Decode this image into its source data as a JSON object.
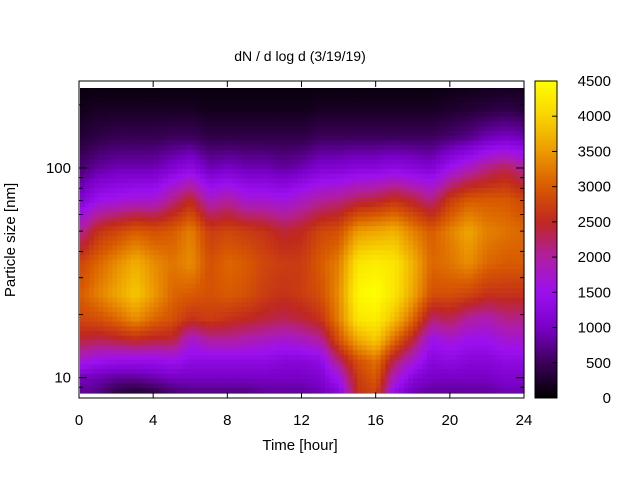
{
  "chart_data": {
    "type": "heatmap",
    "title": "dN / d log d (3/19/19)",
    "xlabel": "Time [hour]",
    "ylabel": "Particle size [nm]",
    "x_range": [
      0,
      24
    ],
    "x_ticks": [
      0,
      4,
      8,
      12,
      16,
      20,
      24
    ],
    "y_scale": "log",
    "y_range": [
      8,
      260
    ],
    "y_ticks": [
      10,
      100
    ],
    "colorbar": {
      "range": [
        0,
        4500
      ],
      "ticks": [
        0,
        500,
        1000,
        1500,
        2000,
        2500,
        3000,
        3500,
        4000,
        4500
      ],
      "palette": [
        "#000000",
        "#3c005a",
        "#7a00c8",
        "#9c10f0",
        "#b01ea0",
        "#c0281e",
        "#d85a00",
        "#ec9a00",
        "#f8d400",
        "#ffff00"
      ]
    },
    "hours": [
      0,
      1,
      2,
      3,
      4,
      5,
      6,
      7,
      8,
      9,
      10,
      11,
      12,
      13,
      14,
      15,
      16,
      17,
      18,
      19,
      20,
      21,
      22,
      23,
      24
    ],
    "sizes_nm": [
      8.5,
      10,
      12,
      15,
      19,
      25,
      35,
      50,
      70,
      100,
      140,
      190,
      260
    ],
    "values": [
      [
        800,
        1000,
        1700,
        2400,
        2800,
        3000,
        2800,
        2000,
        1100,
        600,
        300,
        150,
        50
      ],
      [
        700,
        900,
        1500,
        2300,
        2900,
        3300,
        3100,
        2600,
        1500,
        800,
        400,
        200,
        60
      ],
      [
        400,
        800,
        1400,
        2400,
        3100,
        3600,
        3400,
        2800,
        1600,
        900,
        450,
        200,
        60
      ],
      [
        300,
        800,
        1400,
        2500,
        3400,
        3900,
        3700,
        3000,
        1700,
        900,
        450,
        200,
        60
      ],
      [
        400,
        900,
        1400,
        2400,
        3100,
        3500,
        3400,
        2900,
        1700,
        900,
        450,
        200,
        60
      ],
      [
        600,
        1000,
        1500,
        2400,
        2900,
        3100,
        3200,
        3000,
        2100,
        1100,
        500,
        200,
        60
      ],
      [
        700,
        1000,
        1300,
        1700,
        2600,
        3000,
        3400,
        3300,
        2500,
        1300,
        500,
        200,
        60
      ],
      [
        700,
        1000,
        1300,
        2000,
        2700,
        2900,
        2900,
        2700,
        1800,
        900,
        400,
        150,
        50
      ],
      [
        700,
        1000,
        1300,
        2000,
        2600,
        3000,
        3100,
        2800,
        2000,
        1000,
        400,
        150,
        50
      ],
      [
        700,
        1000,
        1300,
        1900,
        2500,
        2900,
        3000,
        2700,
        1700,
        900,
        400,
        150,
        50
      ],
      [
        800,
        1000,
        1300,
        1800,
        2400,
        2700,
        2800,
        2600,
        1700,
        900,
        400,
        150,
        50
      ],
      [
        800,
        1000,
        1200,
        1700,
        2300,
        2600,
        2700,
        2400,
        1600,
        800,
        400,
        150,
        50
      ],
      [
        800,
        1000,
        1200,
        1800,
        2400,
        2700,
        2700,
        2500,
        1800,
        900,
        400,
        150,
        50
      ],
      [
        900,
        1100,
        1300,
        2000,
        2600,
        2900,
        3000,
        2800,
        2000,
        1100,
        500,
        200,
        60
      ],
      [
        1200,
        1600,
        2200,
        2900,
        3300,
        3400,
        3300,
        2900,
        2100,
        1100,
        500,
        200,
        60
      ],
      [
        2600,
        2700,
        2900,
        3600,
        4200,
        4400,
        4200,
        3500,
        2300,
        1200,
        500,
        200,
        60
      ],
      [
        2800,
        3000,
        3200,
        3900,
        4300,
        4500,
        4300,
        3600,
        2400,
        1200,
        500,
        200,
        60
      ],
      [
        1400,
        1800,
        2300,
        3100,
        3800,
        4200,
        4200,
        3700,
        2600,
        1300,
        500,
        200,
        60
      ],
      [
        900,
        1200,
        1700,
        2400,
        3100,
        3600,
        3700,
        3300,
        2400,
        1200,
        500,
        200,
        60
      ],
      [
        800,
        1000,
        1200,
        1500,
        2200,
        2900,
        3100,
        3000,
        2100,
        1100,
        500,
        200,
        60
      ],
      [
        800,
        1000,
        1300,
        1700,
        2300,
        2900,
        3200,
        3300,
        2700,
        1500,
        600,
        250,
        70
      ],
      [
        800,
        1000,
        1200,
        1500,
        2000,
        2800,
        3400,
        3600,
        3000,
        1800,
        700,
        300,
        80
      ],
      [
        800,
        1000,
        1200,
        1500,
        1900,
        2600,
        3100,
        3300,
        3000,
        2100,
        900,
        350,
        90
      ],
      [
        900,
        1100,
        1300,
        1700,
        2100,
        2600,
        3000,
        3200,
        3000,
        2300,
        1000,
        400,
        100
      ],
      [
        900,
        1100,
        1300,
        1700,
        2100,
        2600,
        3000,
        3100,
        2800,
        2000,
        900,
        350,
        100
      ]
    ]
  }
}
